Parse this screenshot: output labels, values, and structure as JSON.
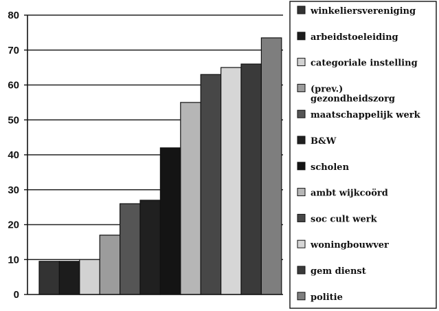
{
  "chart_data": {
    "type": "bar",
    "ylim": [
      0,
      80
    ],
    "yticks": [
      "0",
      "10",
      "20",
      "30",
      "40",
      "50",
      "60",
      "70",
      "80"
    ],
    "grid": true,
    "legend_position": "right",
    "categories": [
      "winkeliersvereniging",
      "arbeidstoeleiding",
      "categoriale instelling",
      "(prev.) gezondheidszorg",
      "maatschappelijk werk",
      "B&W",
      "scholen",
      "ambt wijkcoörd",
      "soc cult werk",
      "woningbouwver",
      "gem dienst",
      "politie"
    ],
    "values": [
      9.5,
      9.5,
      10,
      17,
      26,
      27,
      42,
      55,
      63,
      65,
      66,
      73.5
    ],
    "colors": [
      "#333333",
      "#1c1c1c",
      "#d2d2d2",
      "#9c9c9c",
      "#555555",
      "#202020",
      "#141414",
      "#b6b6b6",
      "#474747",
      "#d6d6d6",
      "#3a3a3a",
      "#7e7e7e"
    ]
  }
}
